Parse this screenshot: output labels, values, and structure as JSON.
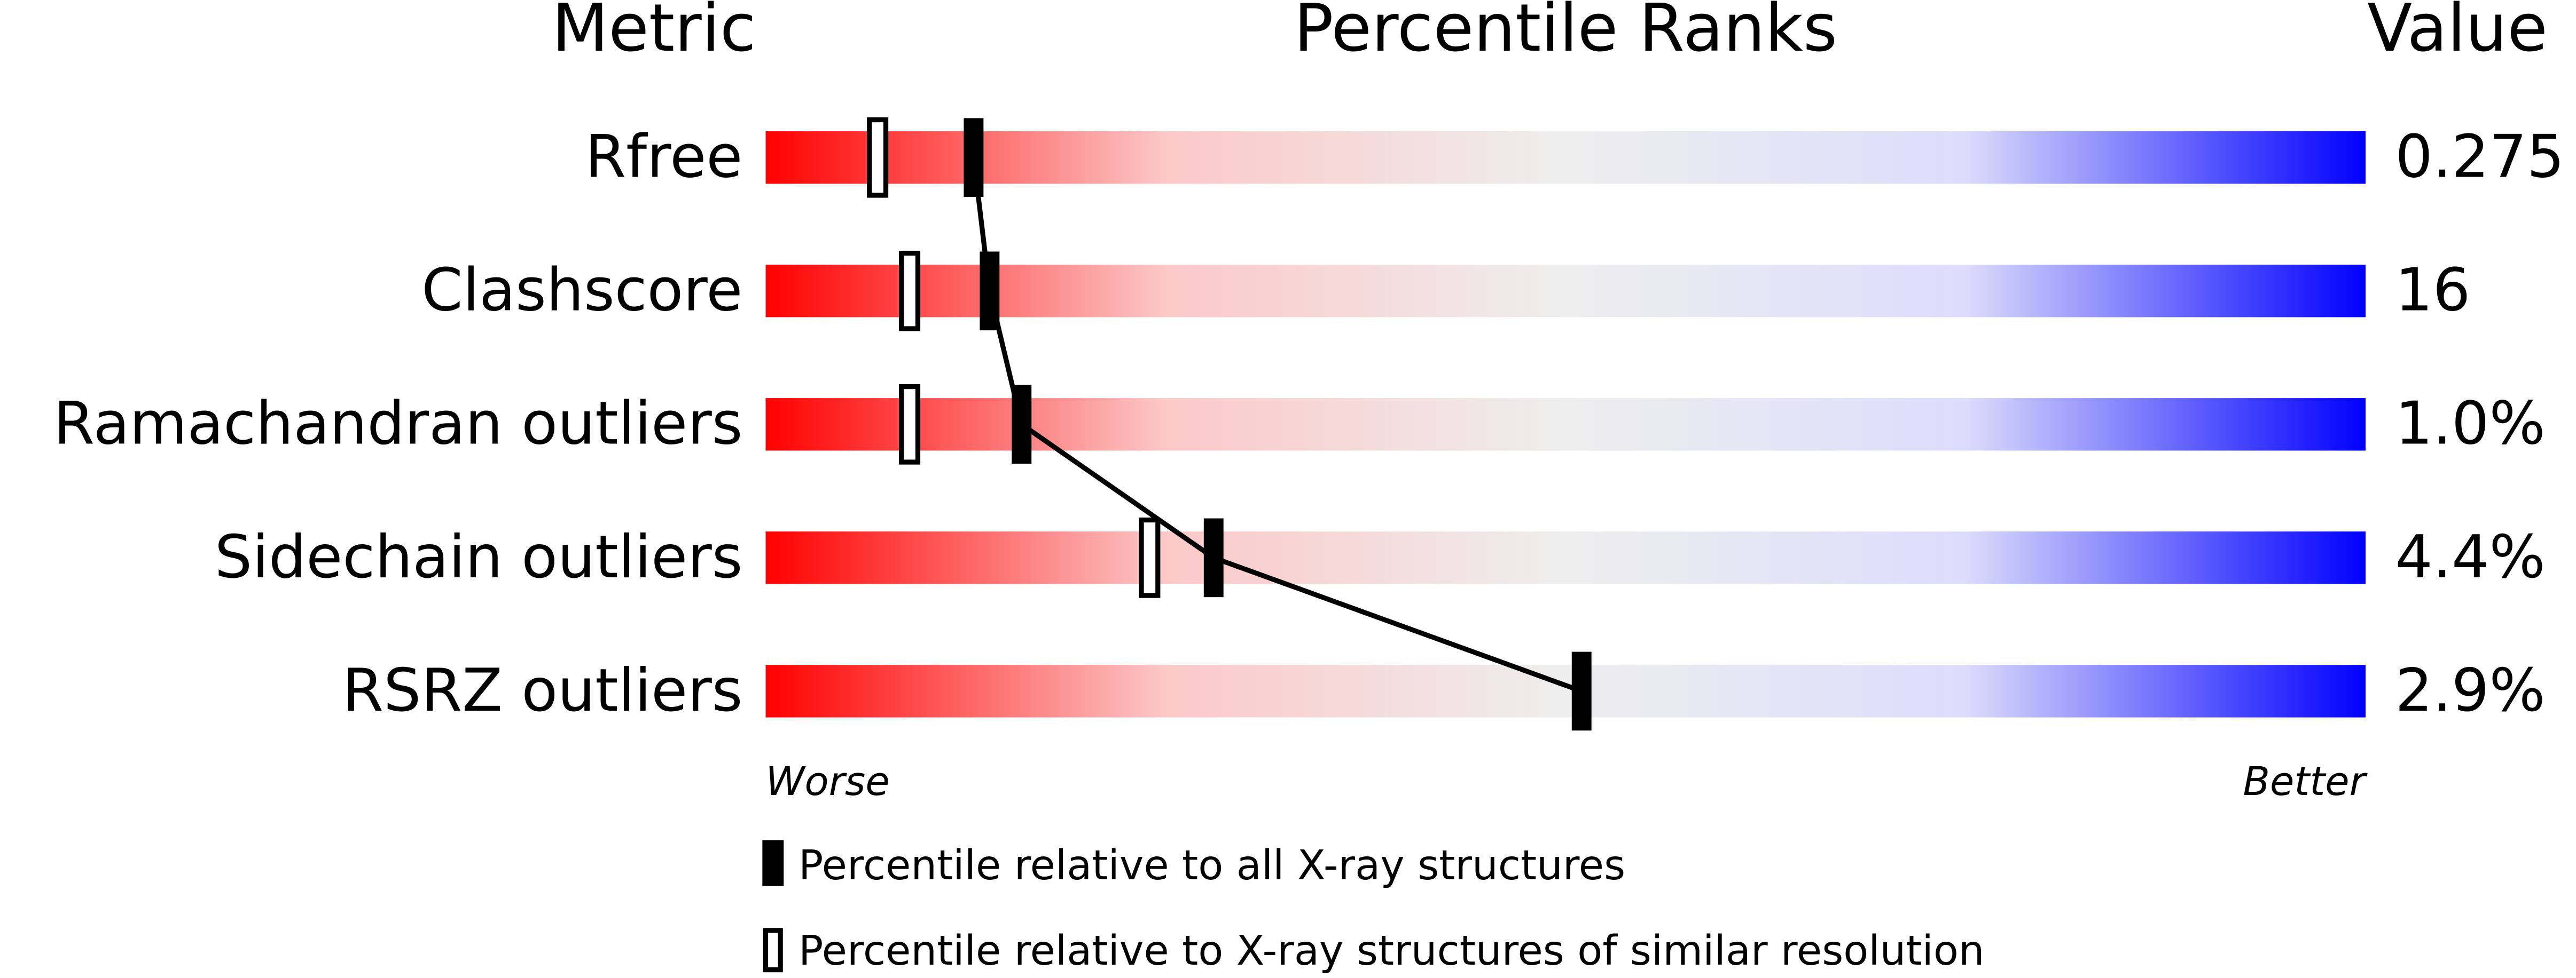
{
  "chart_data": {
    "type": "slider",
    "headers": [
      "Metric",
      "Percentile Ranks",
      "Value"
    ],
    "categories": [
      "Rfree",
      "Clashscore",
      "Ramachandran outliers",
      "Sidechain outliers",
      "RSRZ outliers"
    ],
    "metric_values": [
      "0.275",
      "16",
      "1.0%",
      "4.4%",
      "2.9%"
    ],
    "series": [
      {
        "name": "Percentile relative to all X-ray structures",
        "color": "#000000",
        "values": [
          13,
          14,
          16,
          28,
          51
        ]
      },
      {
        "name": "Percentile relative to X-ray structures of similar resolution",
        "color": "#000000",
        "values": [
          7,
          9,
          9,
          24,
          null
        ]
      }
    ],
    "xlim": [
      0,
      100
    ],
    "x_axis_labels": [
      "Worse",
      "Better"
    ],
    "gradient_colors": [
      "#ff0000",
      "#fcc8c8",
      "#eeeeee",
      "#dcdcfc",
      "#0000ff"
    ]
  }
}
